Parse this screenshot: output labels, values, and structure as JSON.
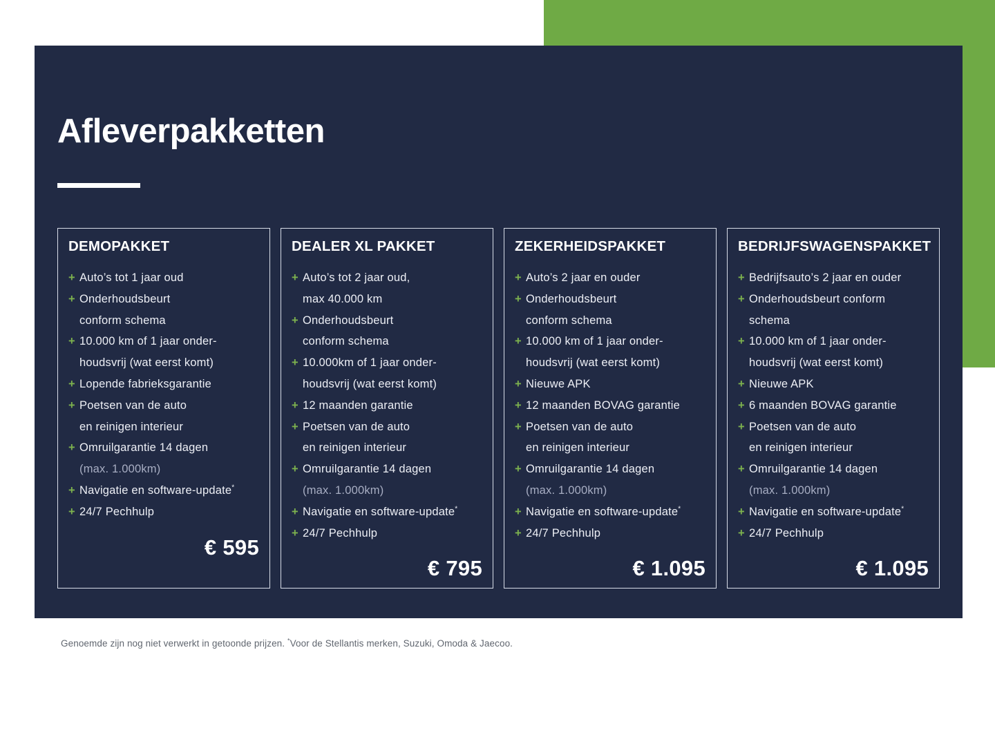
{
  "page": {
    "title": "Afleverpakketten"
  },
  "bullet_glyph": "+",
  "colors": {
    "background": "#ffffff",
    "panel_navy": "#212A44",
    "accent_green": "#6FAA45",
    "plus_green": "#7DB24E",
    "body_text": "#EDEFF5",
    "muted_text": "#A8AEC3",
    "card_border": "#D9DEE9",
    "title_text": "#FFFFFF",
    "footnote_text": "#60666F"
  },
  "packages": [
    {
      "name": "DEMOPAKKET",
      "price": "€ 595",
      "items": [
        {
          "lines": [
            {
              "text": "Auto’s tot 1 jaar oud"
            }
          ]
        },
        {
          "lines": [
            {
              "text": "Onderhoudsbeurt"
            },
            {
              "text": "conform schema"
            }
          ]
        },
        {
          "lines": [
            {
              "text": "10.000 km of 1 jaar onder-"
            },
            {
              "text": "houdsvrij (wat eerst komt)"
            }
          ]
        },
        {
          "lines": [
            {
              "text": "Lopende fabrieksgarantie"
            }
          ]
        },
        {
          "lines": [
            {
              "text": "Poetsen van de auto"
            },
            {
              "text": "en reinigen interieur"
            }
          ]
        },
        {
          "lines": [
            {
              "text": "Omruilgarantie 14 dagen"
            },
            {
              "text": "(max. 1.000km)",
              "muted": true
            }
          ]
        },
        {
          "lines": [
            {
              "text": "Navigatie en software-update",
              "sup": "*"
            }
          ]
        },
        {
          "lines": [
            {
              "text": "24/7 Pechhulp"
            }
          ]
        }
      ]
    },
    {
      "name": "DEALER XL PAKKET",
      "price": "€ 795",
      "items": [
        {
          "lines": [
            {
              "text": "Auto’s tot 2 jaar oud,"
            },
            {
              "text": "max 40.000 km"
            }
          ]
        },
        {
          "lines": [
            {
              "text": "Onderhoudsbeurt"
            },
            {
              "text": "conform schema"
            }
          ]
        },
        {
          "lines": [
            {
              "text": "10.000km of 1 jaar onder-"
            },
            {
              "text": "houdsvrij (wat eerst komt)"
            }
          ]
        },
        {
          "lines": [
            {
              "text": "12 maanden garantie"
            }
          ]
        },
        {
          "lines": [
            {
              "text": "Poetsen van de auto"
            },
            {
              "text": "en reinigen interieur"
            }
          ]
        },
        {
          "lines": [
            {
              "text": "Omruilgarantie 14 dagen"
            },
            {
              "text": "(max. 1.000km)",
              "muted": true
            }
          ]
        },
        {
          "lines": [
            {
              "text": "Navigatie en software-update",
              "sup": "*"
            }
          ]
        },
        {
          "lines": [
            {
              "text": "24/7 Pechhulp"
            }
          ]
        }
      ]
    },
    {
      "name": "ZEKERHEIDSPAKKET",
      "price": "€ 1.095",
      "items": [
        {
          "lines": [
            {
              "text": "Auto’s 2 jaar en ouder"
            }
          ]
        },
        {
          "lines": [
            {
              "text": "Onderhoudsbeurt"
            },
            {
              "text": "conform schema"
            }
          ]
        },
        {
          "lines": [
            {
              "text": "10.000 km of 1 jaar onder-"
            },
            {
              "text": "houdsvrij (wat eerst komt)"
            }
          ]
        },
        {
          "lines": [
            {
              "text": "Nieuwe APK"
            }
          ]
        },
        {
          "lines": [
            {
              "text": "12 maanden BOVAG garantie"
            }
          ]
        },
        {
          "lines": [
            {
              "text": "Poetsen van de auto"
            },
            {
              "text": "en reinigen interieur"
            }
          ]
        },
        {
          "lines": [
            {
              "text": "Omruilgarantie 14 dagen"
            },
            {
              "text": "(max. 1.000km)",
              "muted": true
            }
          ]
        },
        {
          "lines": [
            {
              "text": "Navigatie en software-update",
              "sup": "*"
            }
          ]
        },
        {
          "lines": [
            {
              "text": "24/7 Pechhulp"
            }
          ]
        }
      ]
    },
    {
      "name": "BEDRIJFSWAGENSPAKKET",
      "price": "€ 1.095",
      "items": [
        {
          "lines": [
            {
              "text": "Bedrijfsauto’s 2 jaar en ouder"
            }
          ]
        },
        {
          "lines": [
            {
              "text": "Onderhoudsbeurt conform"
            },
            {
              "text": "schema"
            }
          ]
        },
        {
          "lines": [
            {
              "text": "10.000 km of 1 jaar onder-"
            },
            {
              "text": "houdsvrij (wat eerst komt)"
            }
          ]
        },
        {
          "lines": [
            {
              "text": "Nieuwe APK"
            }
          ]
        },
        {
          "lines": [
            {
              "text": "6 maanden BOVAG garantie"
            }
          ]
        },
        {
          "lines": [
            {
              "text": "Poetsen van de auto"
            },
            {
              "text": "en reinigen interieur"
            }
          ]
        },
        {
          "lines": [
            {
              "text": "Omruilgarantie 14 dagen"
            },
            {
              "text": "(max. 1.000km)",
              "muted": true
            }
          ]
        },
        {
          "lines": [
            {
              "text": "Navigatie en software-update",
              "sup": "*"
            }
          ]
        },
        {
          "lines": [
            {
              "text": "24/7 Pechhulp"
            }
          ]
        }
      ]
    }
  ],
  "footnote": {
    "before": "Genoemde zijn nog niet verwerkt in getoonde prijzen. ",
    "sup": "*",
    "after": "Voor de Stellantis merken, Suzuki, Omoda & Jaecoo."
  }
}
